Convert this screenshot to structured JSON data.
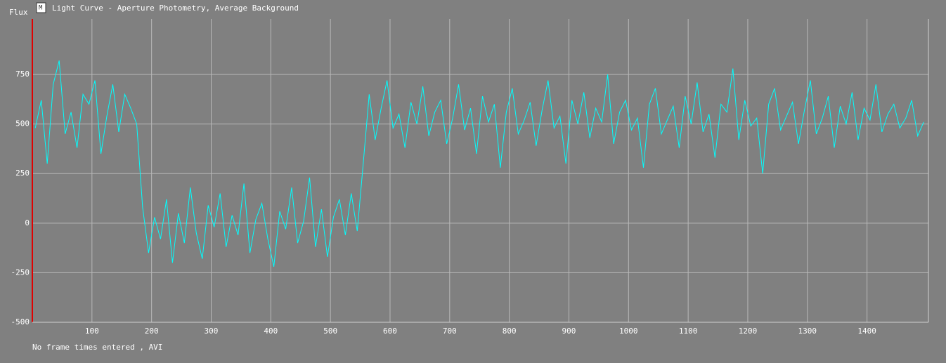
{
  "chart_data": {
    "type": "line",
    "title": "Light Curve - Aperture Photometry, Average Background",
    "y_label": "Flux",
    "footer": "No frame times entered , AVI",
    "x": [
      5,
      15,
      25,
      35,
      45,
      55,
      65,
      75,
      85,
      95,
      105,
      115,
      125,
      135,
      145,
      155,
      165,
      175,
      185,
      195,
      205,
      215,
      225,
      235,
      245,
      255,
      265,
      275,
      285,
      295,
      305,
      315,
      325,
      335,
      345,
      355,
      365,
      375,
      385,
      395,
      405,
      415,
      425,
      435,
      445,
      455,
      465,
      475,
      485,
      495,
      505,
      515,
      525,
      535,
      545,
      555,
      565,
      575,
      585,
      595,
      605,
      615,
      625,
      635,
      645,
      655,
      665,
      675,
      685,
      695,
      705,
      715,
      725,
      735,
      745,
      755,
      765,
      775,
      785,
      795,
      805,
      815,
      825,
      835,
      845,
      855,
      865,
      875,
      885,
      895,
      905,
      915,
      925,
      935,
      945,
      955,
      965,
      975,
      985,
      995,
      1005,
      1015,
      1025,
      1035,
      1045,
      1055,
      1065,
      1075,
      1085,
      1095,
      1105,
      1115,
      1125,
      1135,
      1145,
      1155,
      1165,
      1175,
      1185,
      1195,
      1205,
      1215,
      1225,
      1235,
      1245,
      1255,
      1265,
      1275,
      1285,
      1295,
      1305,
      1315,
      1325,
      1335,
      1345,
      1355,
      1365,
      1375,
      1385,
      1395,
      1405,
      1415,
      1425,
      1435,
      1445,
      1455,
      1465,
      1475,
      1485,
      1495
    ],
    "series": [
      {
        "name": "Flux",
        "color": "#00ffff",
        "values": [
          480,
          620,
          300,
          700,
          820,
          450,
          560,
          380,
          650,
          600,
          720,
          350,
          540,
          700,
          460,
          650,
          580,
          500,
          80,
          -150,
          30,
          -80,
          120,
          -200,
          50,
          -100,
          180,
          -50,
          -180,
          90,
          -20,
          150,
          -120,
          40,
          -60,
          200,
          -150,
          20,
          100,
          -80,
          -220,
          60,
          -30,
          180,
          -100,
          10,
          230,
          -120,
          70,
          -170,
          30,
          120,
          -60,
          150,
          -40,
          300,
          650,
          420,
          580,
          720,
          480,
          550,
          380,
          610,
          500,
          690,
          440,
          560,
          620,
          400,
          530,
          700,
          470,
          580,
          350,
          640,
          510,
          600,
          280,
          560,
          680,
          450,
          520,
          610,
          390,
          570,
          720,
          480,
          540,
          300,
          620,
          500,
          660,
          430,
          580,
          510,
          750,
          400,
          560,
          620,
          470,
          530,
          280,
          600,
          680,
          450,
          520,
          590,
          380,
          640,
          500,
          710,
          460,
          550,
          330,
          600,
          560,
          780,
          420,
          620,
          490,
          530,
          250,
          600,
          680,
          470,
          540,
          610,
          400,
          570,
          720,
          450,
          530,
          640,
          380,
          590,
          500,
          660,
          420,
          580,
          520,
          700,
          460,
          550,
          600,
          480,
          530,
          620,
          440,
          510
        ]
      }
    ],
    "xlim": [
      0,
      1503
    ],
    "ylim": [
      -500,
      1030
    ],
    "xticks": [
      100,
      200,
      300,
      400,
      500,
      600,
      700,
      800,
      900,
      1000,
      1100,
      1200,
      1300,
      1400
    ],
    "yticks": [
      -500,
      -250,
      0,
      250,
      500,
      750
    ],
    "grid": true
  }
}
